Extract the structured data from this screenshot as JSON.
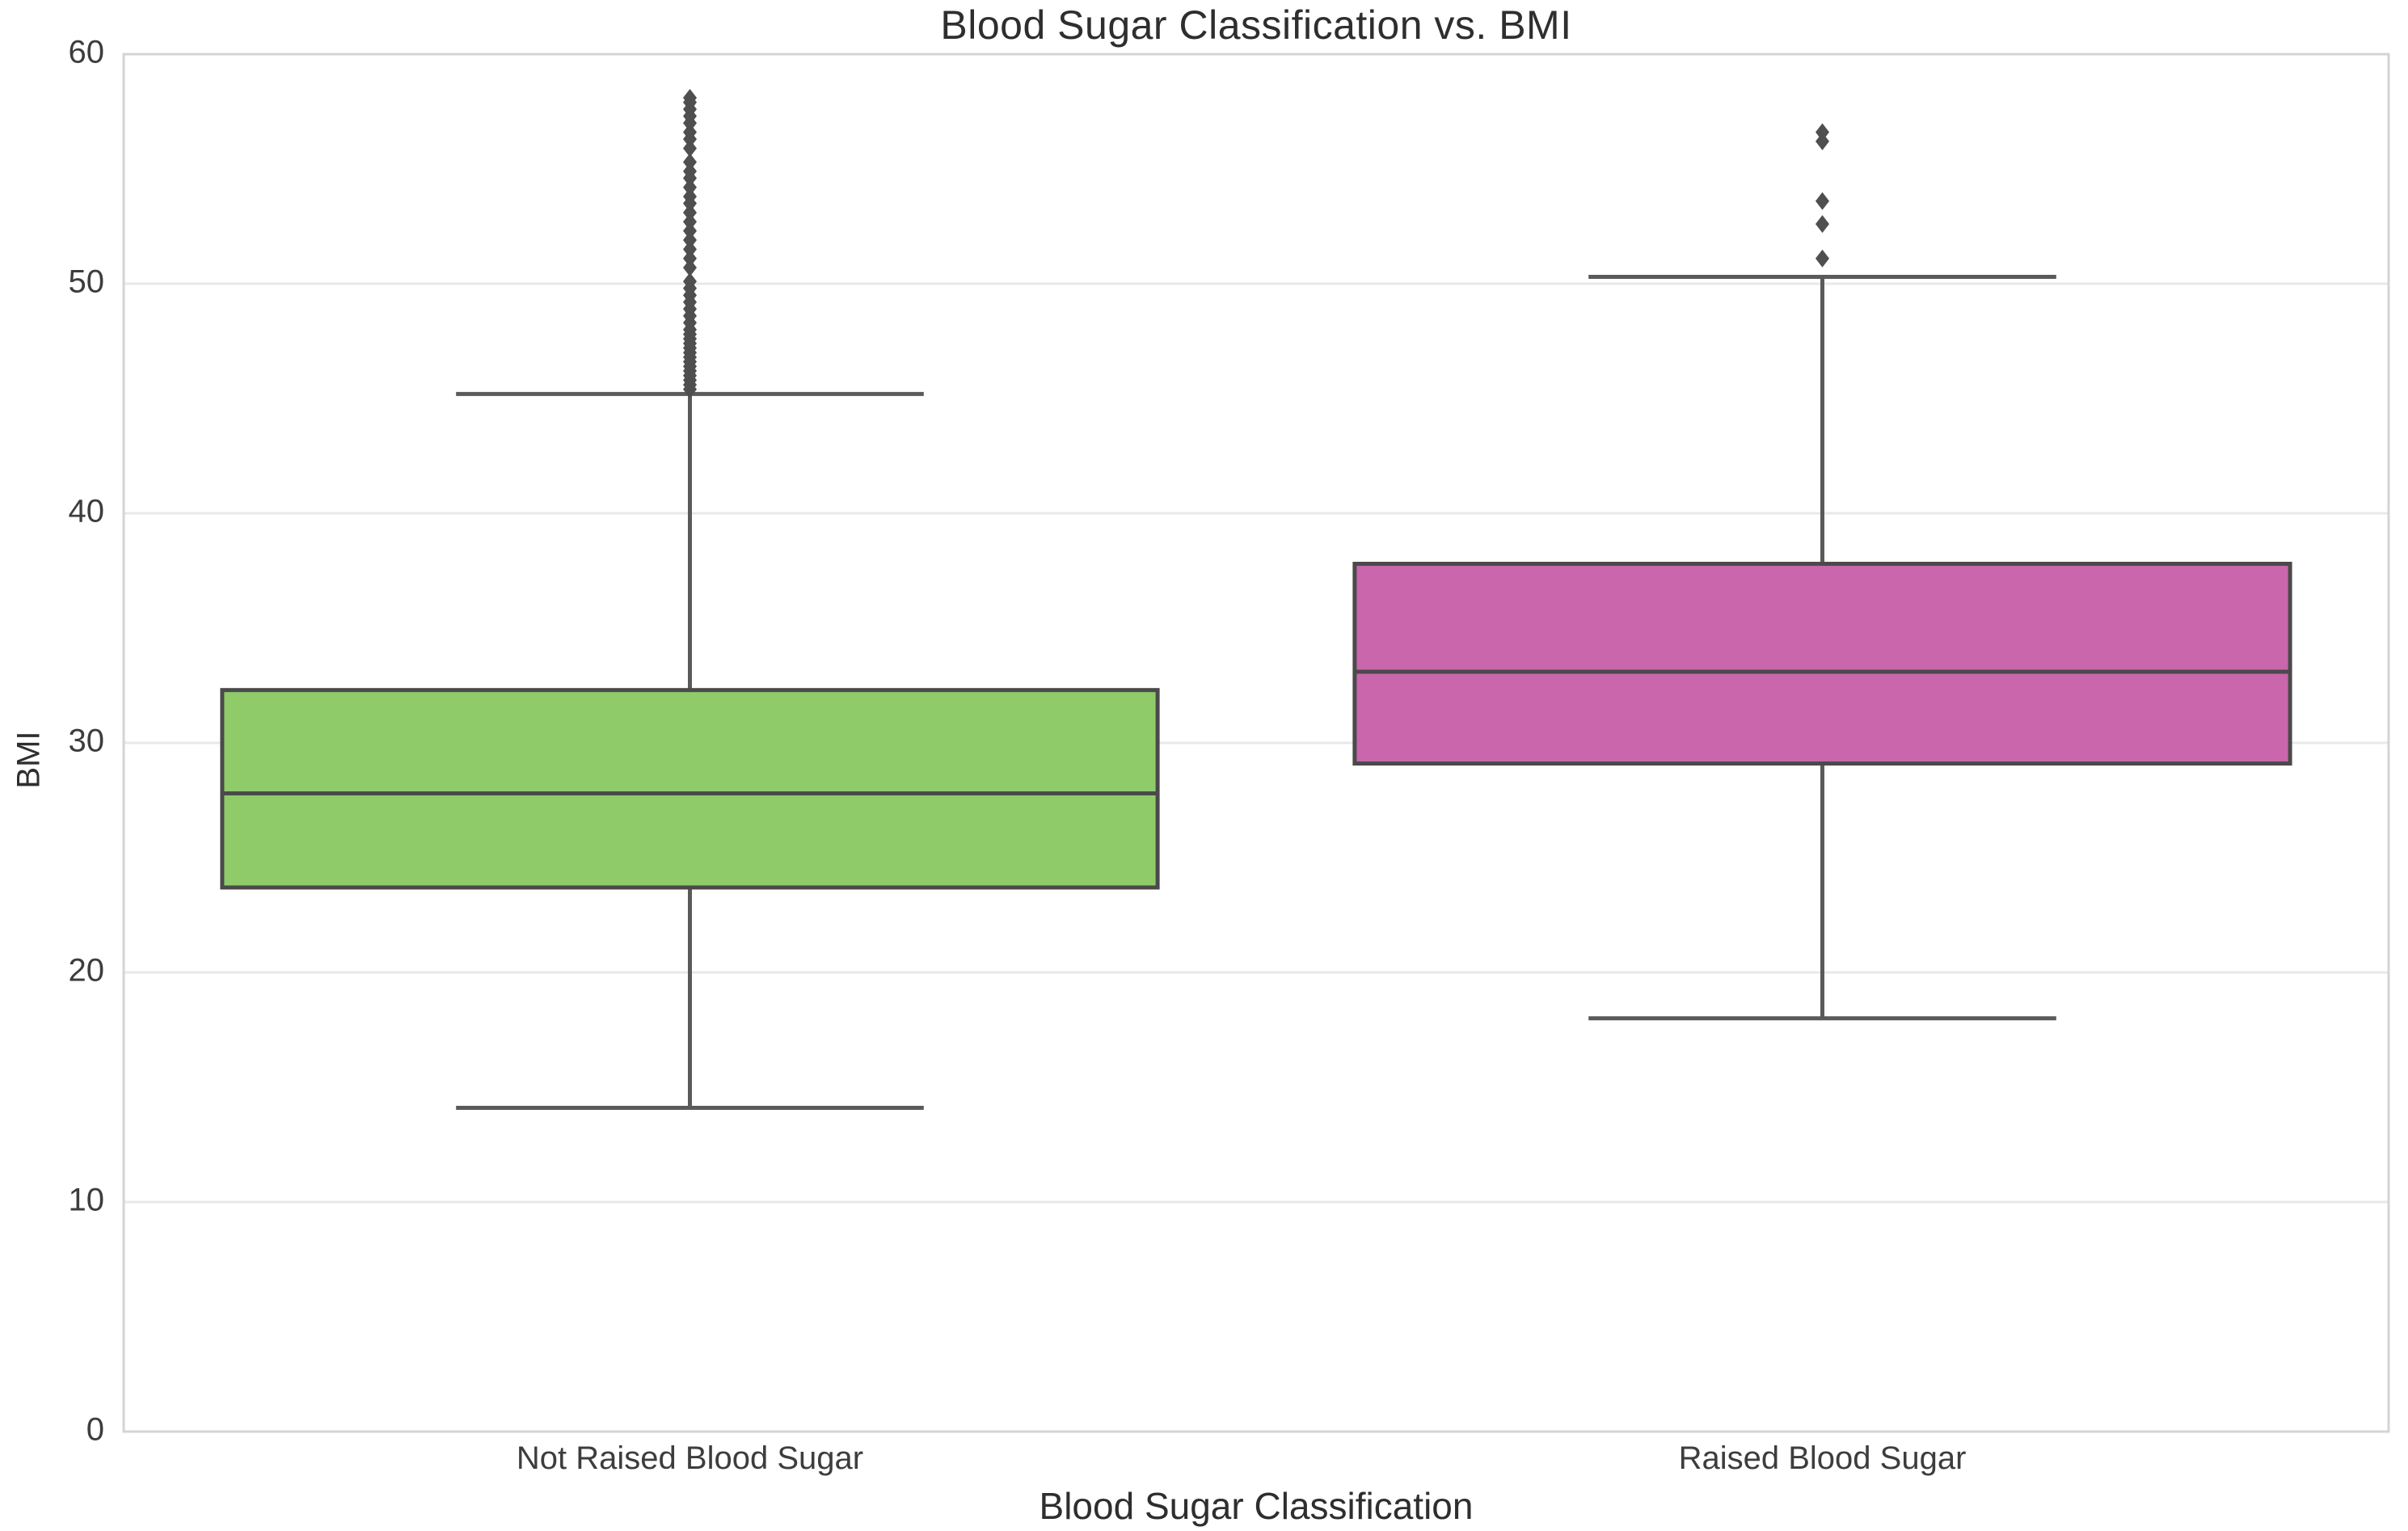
{
  "chart_data": {
    "type": "boxplot",
    "title": "Blood Sugar Classification vs. BMI",
    "xlabel": "Blood Sugar Classification",
    "ylabel": "BMI",
    "ylim": [
      0,
      60
    ],
    "yticks": [
      0,
      10,
      20,
      30,
      40,
      50,
      60
    ],
    "grid": "horizontal",
    "legend": "none",
    "categories": [
      "Not Raised Blood Sugar",
      "Raised Blood Sugar"
    ],
    "series": [
      {
        "name": "Not Raised Blood Sugar",
        "color": "#90cb69",
        "whisker_low": 14.1,
        "q1": 23.7,
        "median": 27.8,
        "q3": 32.3,
        "whisker_high": 45.2,
        "outliers": [
          45.4,
          45.6,
          45.8,
          46.0,
          46.2,
          46.4,
          46.6,
          46.8,
          47.0,
          47.2,
          47.4,
          47.6,
          47.8,
          48.0,
          48.3,
          48.6,
          48.9,
          49.2,
          49.5,
          49.8,
          50.1,
          50.7,
          51.1,
          51.5,
          51.9,
          52.3,
          52.7,
          53.1,
          53.5,
          53.8,
          54.2,
          54.6,
          54.9,
          55.3,
          55.9,
          56.3,
          56.6,
          57.0,
          57.3,
          57.6,
          57.9,
          58.1
        ]
      },
      {
        "name": "Raised Blood Sugar",
        "color": "#c966ac",
        "whisker_low": 18.0,
        "q1": 29.1,
        "median": 33.1,
        "q3": 37.8,
        "whisker_high": 50.3,
        "outliers": [
          51.1,
          52.6,
          53.6,
          56.2,
          56.6
        ]
      }
    ],
    "colors": {
      "box_edge": "#4a4a4a",
      "median": "#4a4a4a",
      "whisker": "#5a5a5a",
      "outlier": "#4f4f4f",
      "grid": "#e8e8e8",
      "spine": "#d4d4d4",
      "tick_label": "#3d3d3d",
      "title": "#2e2e2e",
      "background": "#ffffff"
    }
  }
}
